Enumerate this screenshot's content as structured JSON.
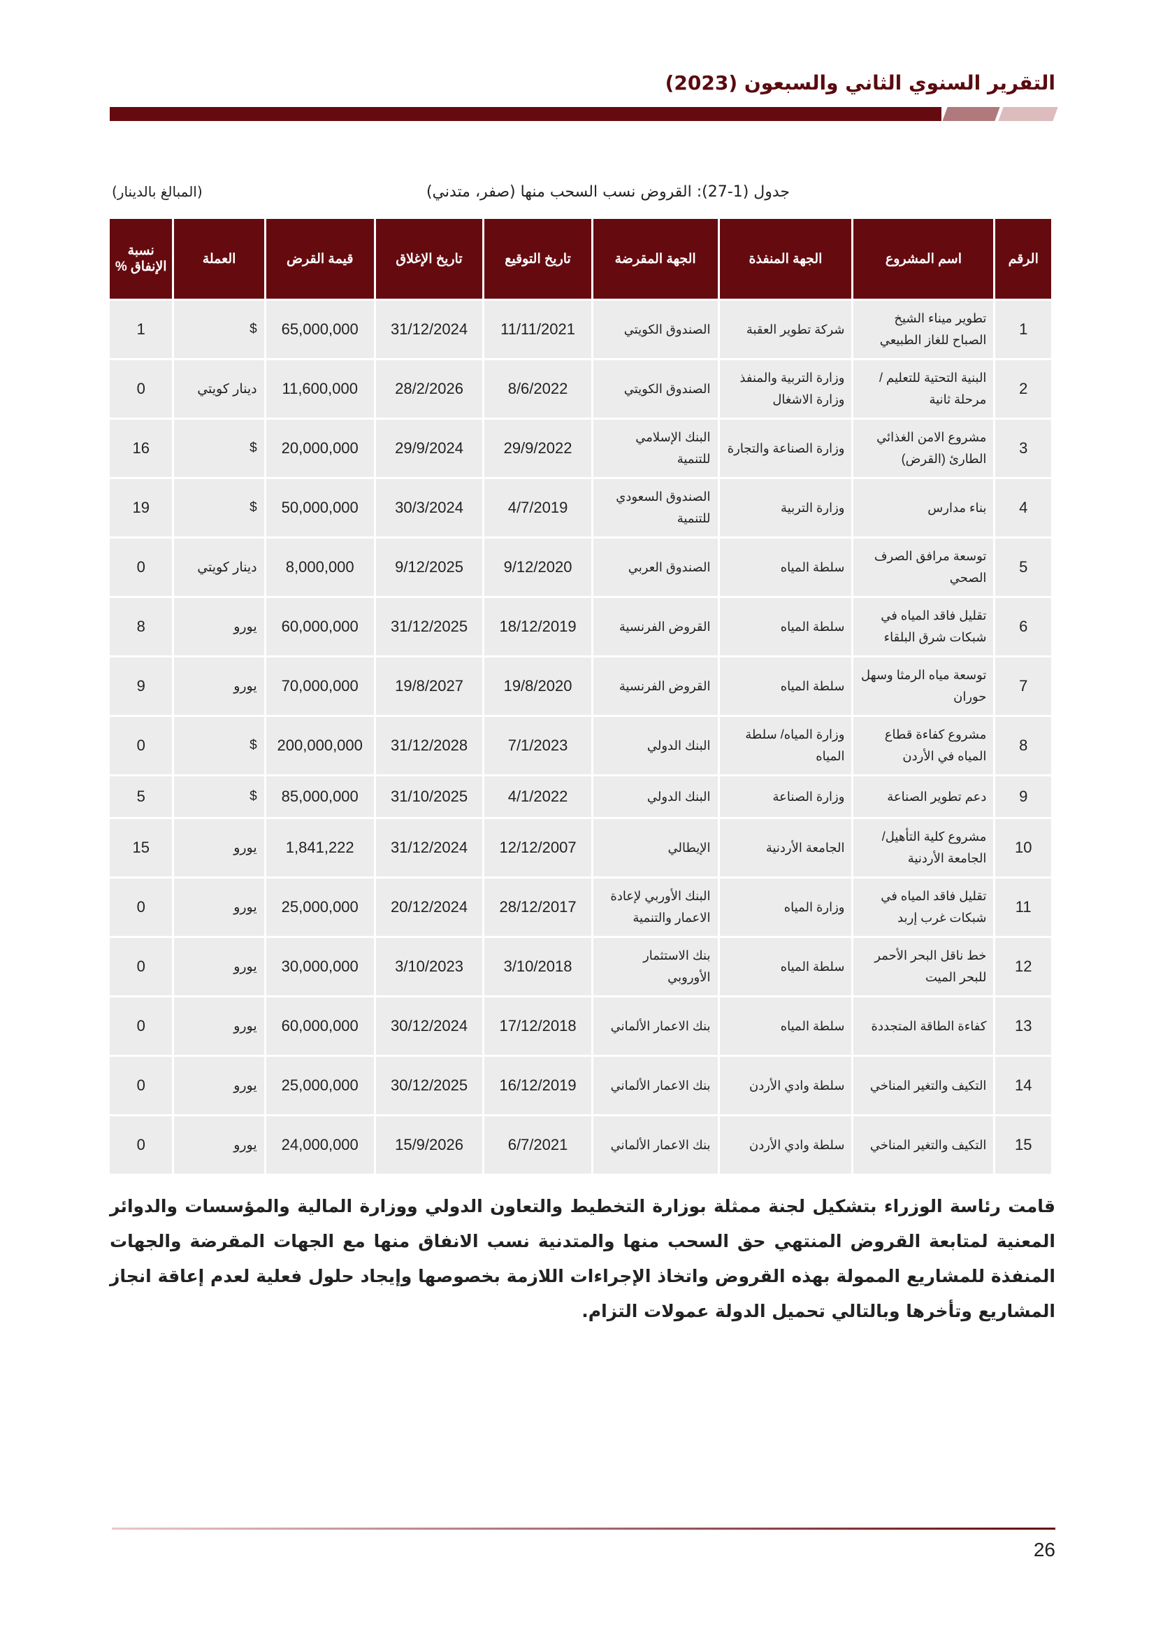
{
  "header": {
    "title": "التقرير السنوي الثاني والسبعون (2023)"
  },
  "caption": "جدول (1-27): القروض نسب السحب منها (صفر، متدني)",
  "unit_note": "(المبالغ بالدينار)",
  "table": {
    "columns": [
      "الرقم",
      "اسم المشروع",
      "الجهة المنفذة",
      "الجهة المقرضة",
      "تاريخ التوقيع",
      "تاريخ الإغلاق",
      "قيمة القرض",
      "العملة",
      "نسبة الإنفاق %"
    ],
    "rows": [
      [
        "1",
        "تطوير ميناء الشيخ الصباح للغاز الطبيعي",
        "شركة تطوير العقبة",
        "الصندوق الكويتي",
        "11/11/2021",
        "31/12/2024",
        "65,000,000",
        "$",
        "1"
      ],
      [
        "2",
        "البنية التحتية للتعليم / مرحلة ثانية",
        "وزارة التربية والمنفذ وزارة الاشغال",
        "الصندوق الكويتي",
        "8/6/2022",
        "28/2/2026",
        "11,600,000",
        "دينار كويتي",
        "0"
      ],
      [
        "3",
        "مشروع الامن الغذائي الطارئ (القرض)",
        "وزارة الصناعة والتجارة",
        "البنك الإسلامي للتنمية",
        "29/9/2022",
        "29/9/2024",
        "20,000,000",
        "$",
        "16"
      ],
      [
        "4",
        "بناء مدارس",
        "وزارة التربية",
        "الصندوق السعودي للتنمية",
        "4/7/2019",
        "30/3/2024",
        "50,000,000",
        "$",
        "19"
      ],
      [
        "5",
        "توسعة مرافق الصرف الصحي",
        "سلطة المياه",
        "الصندوق العربي",
        "9/12/2020",
        "9/12/2025",
        "8,000,000",
        "دينار كويتي",
        "0"
      ],
      [
        "6",
        "تقليل فاقد المياه في شبكات شرق البلقاء",
        "سلطة المياه",
        "القروض الفرنسية",
        "18/12/2019",
        "31/12/2025",
        "60,000,000",
        "يورو",
        "8"
      ],
      [
        "7",
        "توسعة مياه الرمثا وسهل حوران",
        "سلطة المياه",
        "القروض الفرنسية",
        "19/8/2020",
        "19/8/2027",
        "70,000,000",
        "يورو",
        "9"
      ],
      [
        "8",
        "مشروع كفاءة قطاع المياه في الأردن",
        "وزارة المياه/ سلطة المياه",
        "البنك الدولي",
        "7/1/2023",
        "31/12/2028",
        "200,000,000",
        "$",
        "0"
      ],
      [
        "9",
        "دعم تطوير الصناعة",
        "وزارة الصناعة",
        "البنك الدولي",
        "4/1/2022",
        "31/10/2025",
        "85,000,000",
        "$",
        "5"
      ],
      [
        "10",
        "مشروع كلية التأهيل/ الجامعة الأردنية",
        "الجامعة الأردنية",
        "الإيطالي",
        "12/12/2007",
        "31/12/2024",
        "1,841,222",
        "يورو",
        "15"
      ],
      [
        "11",
        "تقليل فاقد المياه في شبكات غرب إربد",
        "وزارة المياه",
        "البنك الأوربي لإعادة الاعمار والتنمية",
        "28/12/2017",
        "20/12/2024",
        "25,000,000",
        "يورو",
        "0"
      ],
      [
        "12",
        "خط ناقل البحر الأحمر للبحر الميت",
        "سلطة المياه",
        "بنك الاستثمار الأوروبي",
        "3/10/2018",
        "3/10/2023",
        "30,000,000",
        "يورو",
        "0"
      ],
      [
        "13",
        "كفاءة الطاقة المتجددة",
        "سلطة المياه",
        "بنك الاعمار الألماني",
        "17/12/2018",
        "30/12/2024",
        "60,000,000",
        "يورو",
        "0"
      ],
      [
        "14",
        "التكيف والتغير المناخي",
        "سلطة وادي الأردن",
        "بنك الاعمار الألماني",
        "16/12/2019",
        "30/12/2025",
        "25,000,000",
        "يورو",
        "0"
      ],
      [
        "15",
        "التكيف والتغير المناخي",
        "سلطة وادي الأردن",
        "بنك الاعمار الألماني",
        "6/7/2021",
        "15/9/2026",
        "24,000,000",
        "يورو",
        "0"
      ]
    ]
  },
  "paragraph": "قامت رئاسة الوزراء بتشكيل لجنة ممثلة بوزارة التخطيط والتعاون الدولي ووزارة المالية والمؤسسات والدوائر المعنية لمتابعة القروض المنتهي حق السحب منها والمتدنية نسب الانفاق منها مع الجهات المقرضة والجهات المنفذة للمشاريع الممولة بهذه القروض واتخاذ الإجراءات اللازمة بخصوصها وإيجاد حلول فعلية لعدم إعاقة انجاز المشاريع وتأخرها وبالتالي تحميل الدولة عمولات التزام.",
  "footer": {
    "page_number": "26"
  },
  "colors": {
    "brand": "#650b10",
    "cell": "#ececec"
  }
}
